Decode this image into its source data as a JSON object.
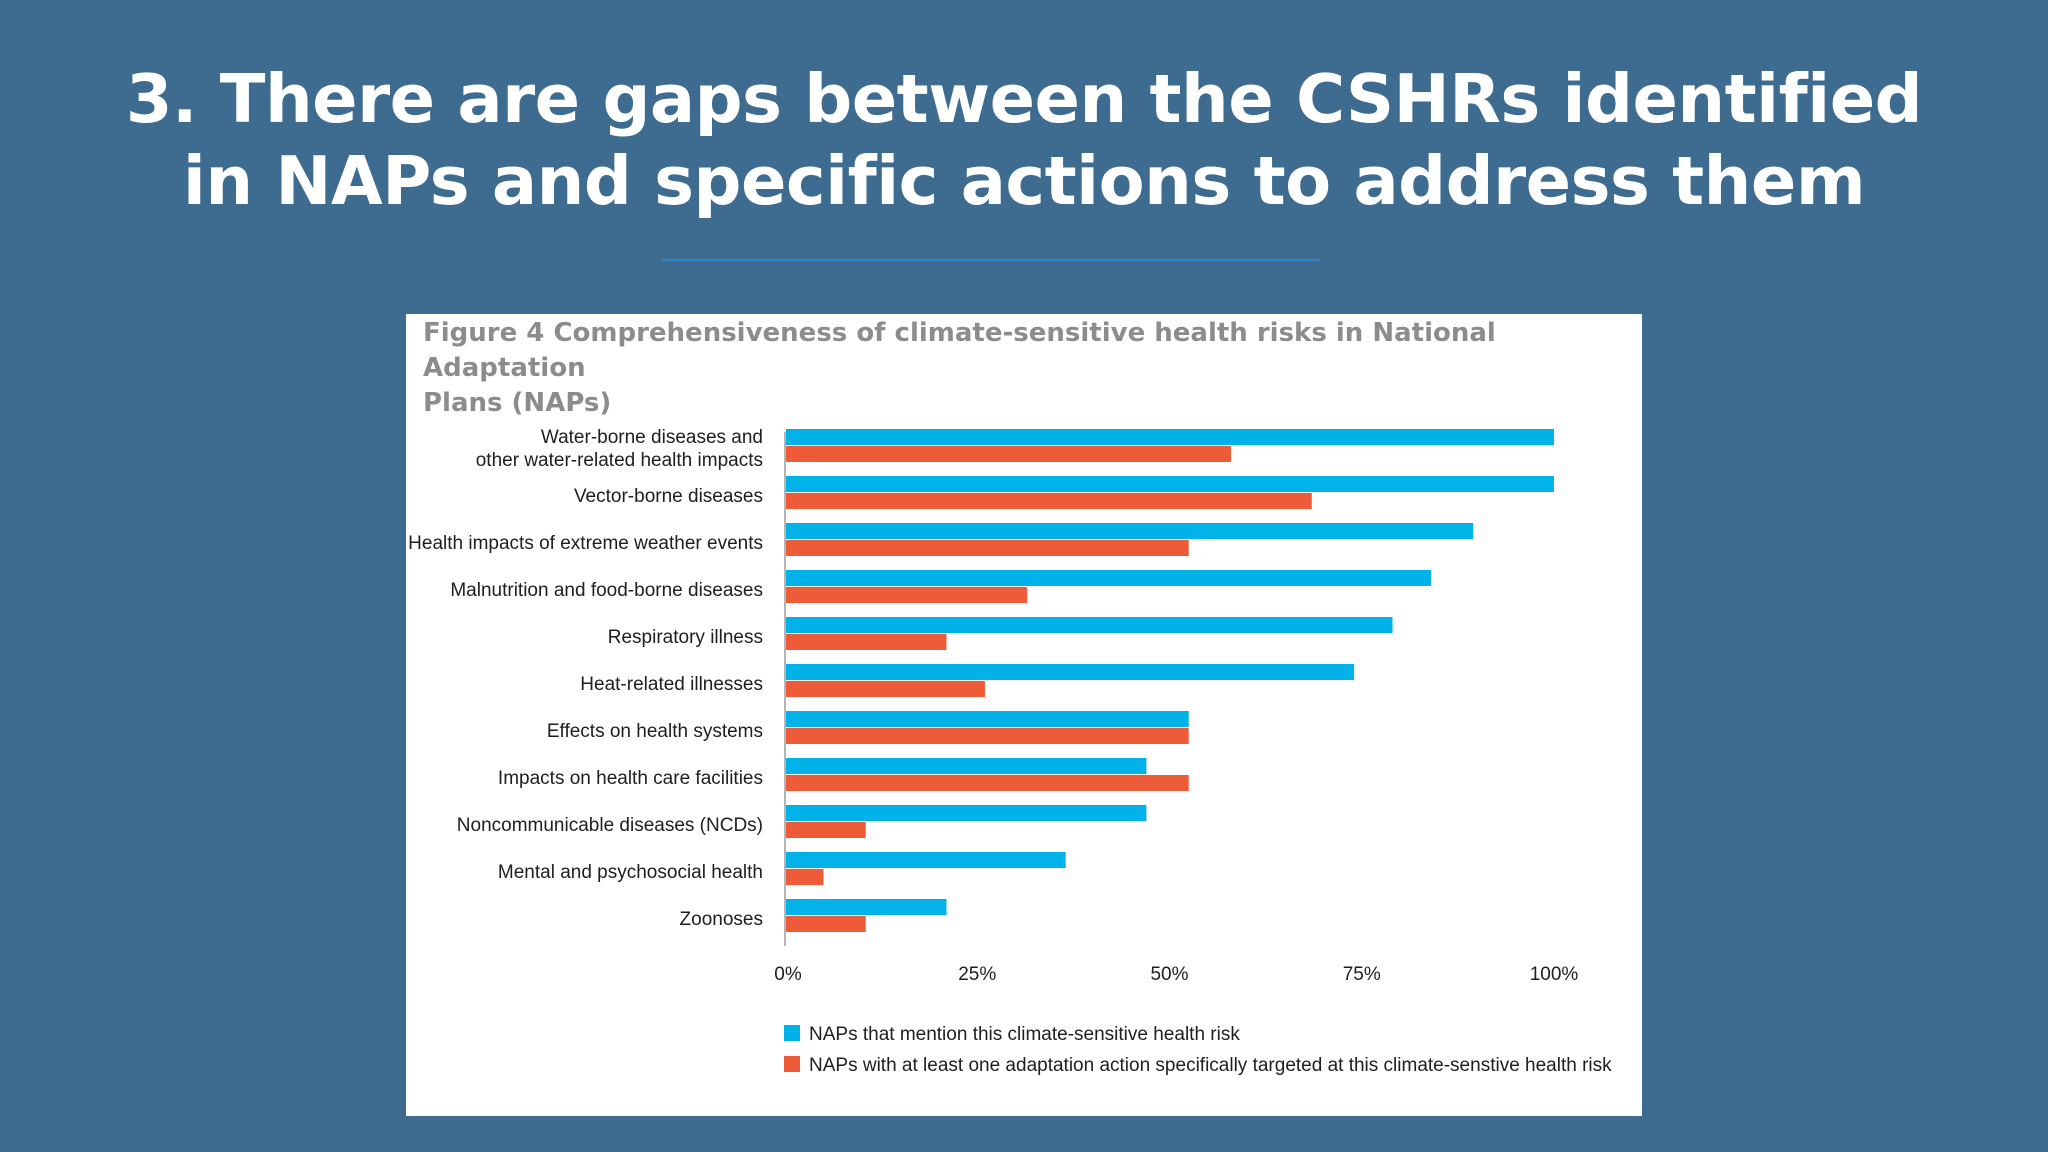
{
  "slide": {
    "title_line1": "3. There are gaps between the CSHRs identified",
    "title_line2": "in NAPs and specific actions to address them"
  },
  "figure": {
    "caption_line1": "Figure 4 Comprehensiveness of climate-sensitive health risks in National Adaptation",
    "caption_line2": "Plans (NAPs)"
  },
  "chart_data": {
    "type": "bar",
    "orientation": "horizontal",
    "categories": [
      [
        "Water-borne diseases and",
        "other water-related health impacts"
      ],
      [
        "Vector-borne diseases"
      ],
      [
        "Health impacts of extreme weather events"
      ],
      [
        "Malnutrition and food-borne diseases"
      ],
      [
        "Respiratory illness"
      ],
      [
        "Heat-related illnesses"
      ],
      [
        "Effects on health systems"
      ],
      [
        "Impacts on health care facilities"
      ],
      [
        "Noncommunicable diseases (NCDs)"
      ],
      [
        "Mental and psychosocial health"
      ],
      [
        "Zoonoses"
      ]
    ],
    "series": [
      {
        "name": "NAPs that mention this climate-sensitive health risk",
        "color": "#00b2e8",
        "values": [
          100,
          100,
          89.5,
          84,
          79,
          74,
          52.5,
          47,
          47,
          36.5,
          21
        ]
      },
      {
        "name": "NAPs with at least one adaptation action specifically targeted at this climate-senstive health risk",
        "color": "#ee5b39",
        "values": [
          58,
          68.5,
          52.5,
          31.5,
          21,
          26,
          52.5,
          52.5,
          10.5,
          5,
          10.5
        ]
      }
    ],
    "xlim": [
      0,
      100
    ],
    "xticks": [
      "0%",
      "25%",
      "50%",
      "75%",
      "100%"
    ],
    "legend_position": "bottom",
    "grid": false
  }
}
